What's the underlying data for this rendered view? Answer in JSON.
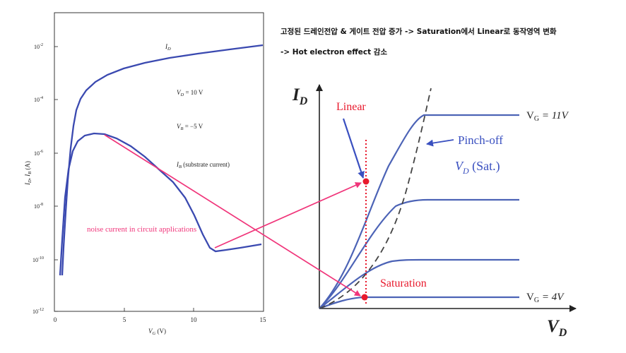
{
  "caption": {
    "line1": "고정된 드레인전압 & 게이트 전압 증가 -> Saturation에서 Linear로 동작영역 변화",
    "line2": "-> Hot electron effect 감소"
  },
  "left_plot": {
    "y_axis_label_main": "I",
    "y_axis_label_sub1": "D",
    "y_axis_label_mid": ", I",
    "y_axis_label_sub2": "B",
    "y_axis_label_unit": " (A)",
    "x_axis_label_main": "V",
    "x_axis_label_sub": "G",
    "x_axis_label_unit": " (V)",
    "y_ticks": [
      {
        "base": "10",
        "exp": "-2"
      },
      {
        "base": "10",
        "exp": "-4"
      },
      {
        "base": "10",
        "exp": "-6"
      },
      {
        "base": "10",
        "exp": "-8"
      },
      {
        "base": "10",
        "exp": "-10"
      },
      {
        "base": "10",
        "exp": "-12"
      }
    ],
    "x_ticks": [
      "0",
      "5",
      "10",
      "15"
    ],
    "id_label_main": "I",
    "id_label_sub": "D",
    "vd_label": {
      "main": "V",
      "sub": "D",
      "rest": " = 10 V"
    },
    "vb_label": {
      "main": "V",
      "sub": "B",
      "rest": " = −5 V"
    },
    "ib_label": {
      "main": "I",
      "sub": "B",
      "rest": " (substrate current)"
    },
    "colors": {
      "curve": "#3a49b0",
      "axis": "#222222"
    }
  },
  "right_plot": {
    "y_axis_main": "I",
    "y_axis_sub": "D",
    "x_axis_main": "V",
    "x_axis_sub": "D",
    "top_curve_label": {
      "main": "V",
      "sub": "G",
      "rest": " = 11V"
    },
    "bottom_curve_label": {
      "main": "V",
      "sub": "G",
      "rest": " = 4V"
    },
    "pinch_off_label": "Pinch-off",
    "vdsat_main": "V",
    "vdsat_sub": "D",
    "vdsat_rest": " (Sat.)",
    "linear_label": "Linear",
    "saturation_label": "Saturation",
    "colors": {
      "curve": "#4c63b6",
      "annotation": "#3a50c0",
      "marker": "#e8192c"
    }
  },
  "noise_label": "noise current in circuit applications",
  "colors": {
    "pink": "#f0357a",
    "caption": "#111111"
  }
}
